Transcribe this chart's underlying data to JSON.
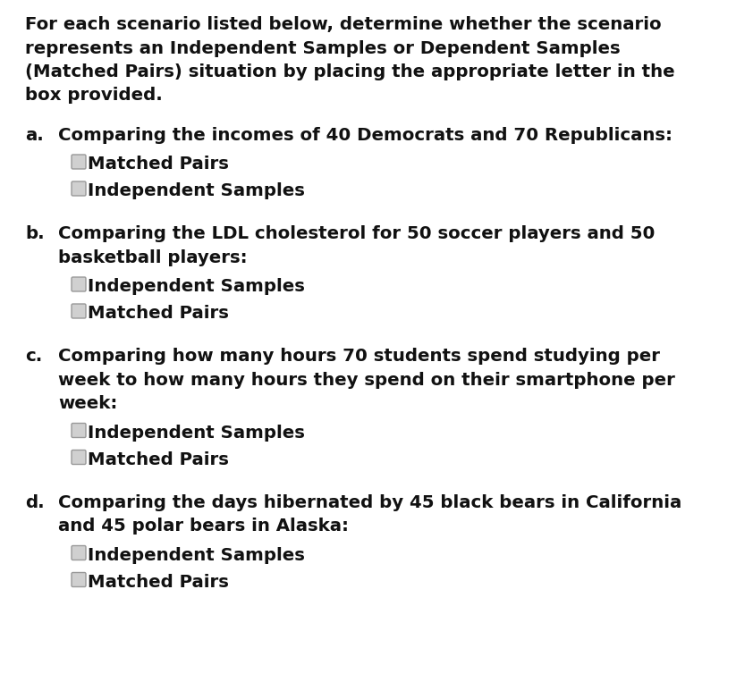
{
  "background_color": "#ffffff",
  "text_color": "#111111",
  "intro_text": [
    "For each scenario listed below, determine whether the scenario",
    "represents an Independent Samples or Dependent Samples",
    "(Matched Pairs) situation by placing the appropriate letter in the",
    "box provided."
  ],
  "scenarios": [
    {
      "label": "a.",
      "question": [
        "Comparing the incomes of 40 Democrats and 70 Republicans:"
      ],
      "options": [
        "Matched Pairs",
        "Independent Samples"
      ]
    },
    {
      "label": "b.",
      "question": [
        "Comparing the LDL cholesterol for 50 soccer players and 50",
        "basketball players:"
      ],
      "options": [
        "Independent Samples",
        "Matched Pairs"
      ]
    },
    {
      "label": "c.",
      "question": [
        "Comparing how many hours 70 students spend studying per",
        "week to how many hours they spend on their smartphone per",
        "week:"
      ],
      "options": [
        "Independent Samples",
        "Matched Pairs"
      ]
    },
    {
      "label": "d.",
      "question": [
        "Comparing the days hibernated by 45 black bears in California",
        "and 45 polar bears in Alaska:"
      ],
      "options": [
        "Independent Samples",
        "Matched Pairs"
      ]
    }
  ],
  "intro_fontsize": 14.2,
  "question_fontsize": 14.2,
  "option_fontsize": 14.2,
  "label_fontsize": 14.2,
  "checkbox_color": "#d0d0d0",
  "checkbox_edge_color": "#999999",
  "checkbox_linewidth": 1.0
}
